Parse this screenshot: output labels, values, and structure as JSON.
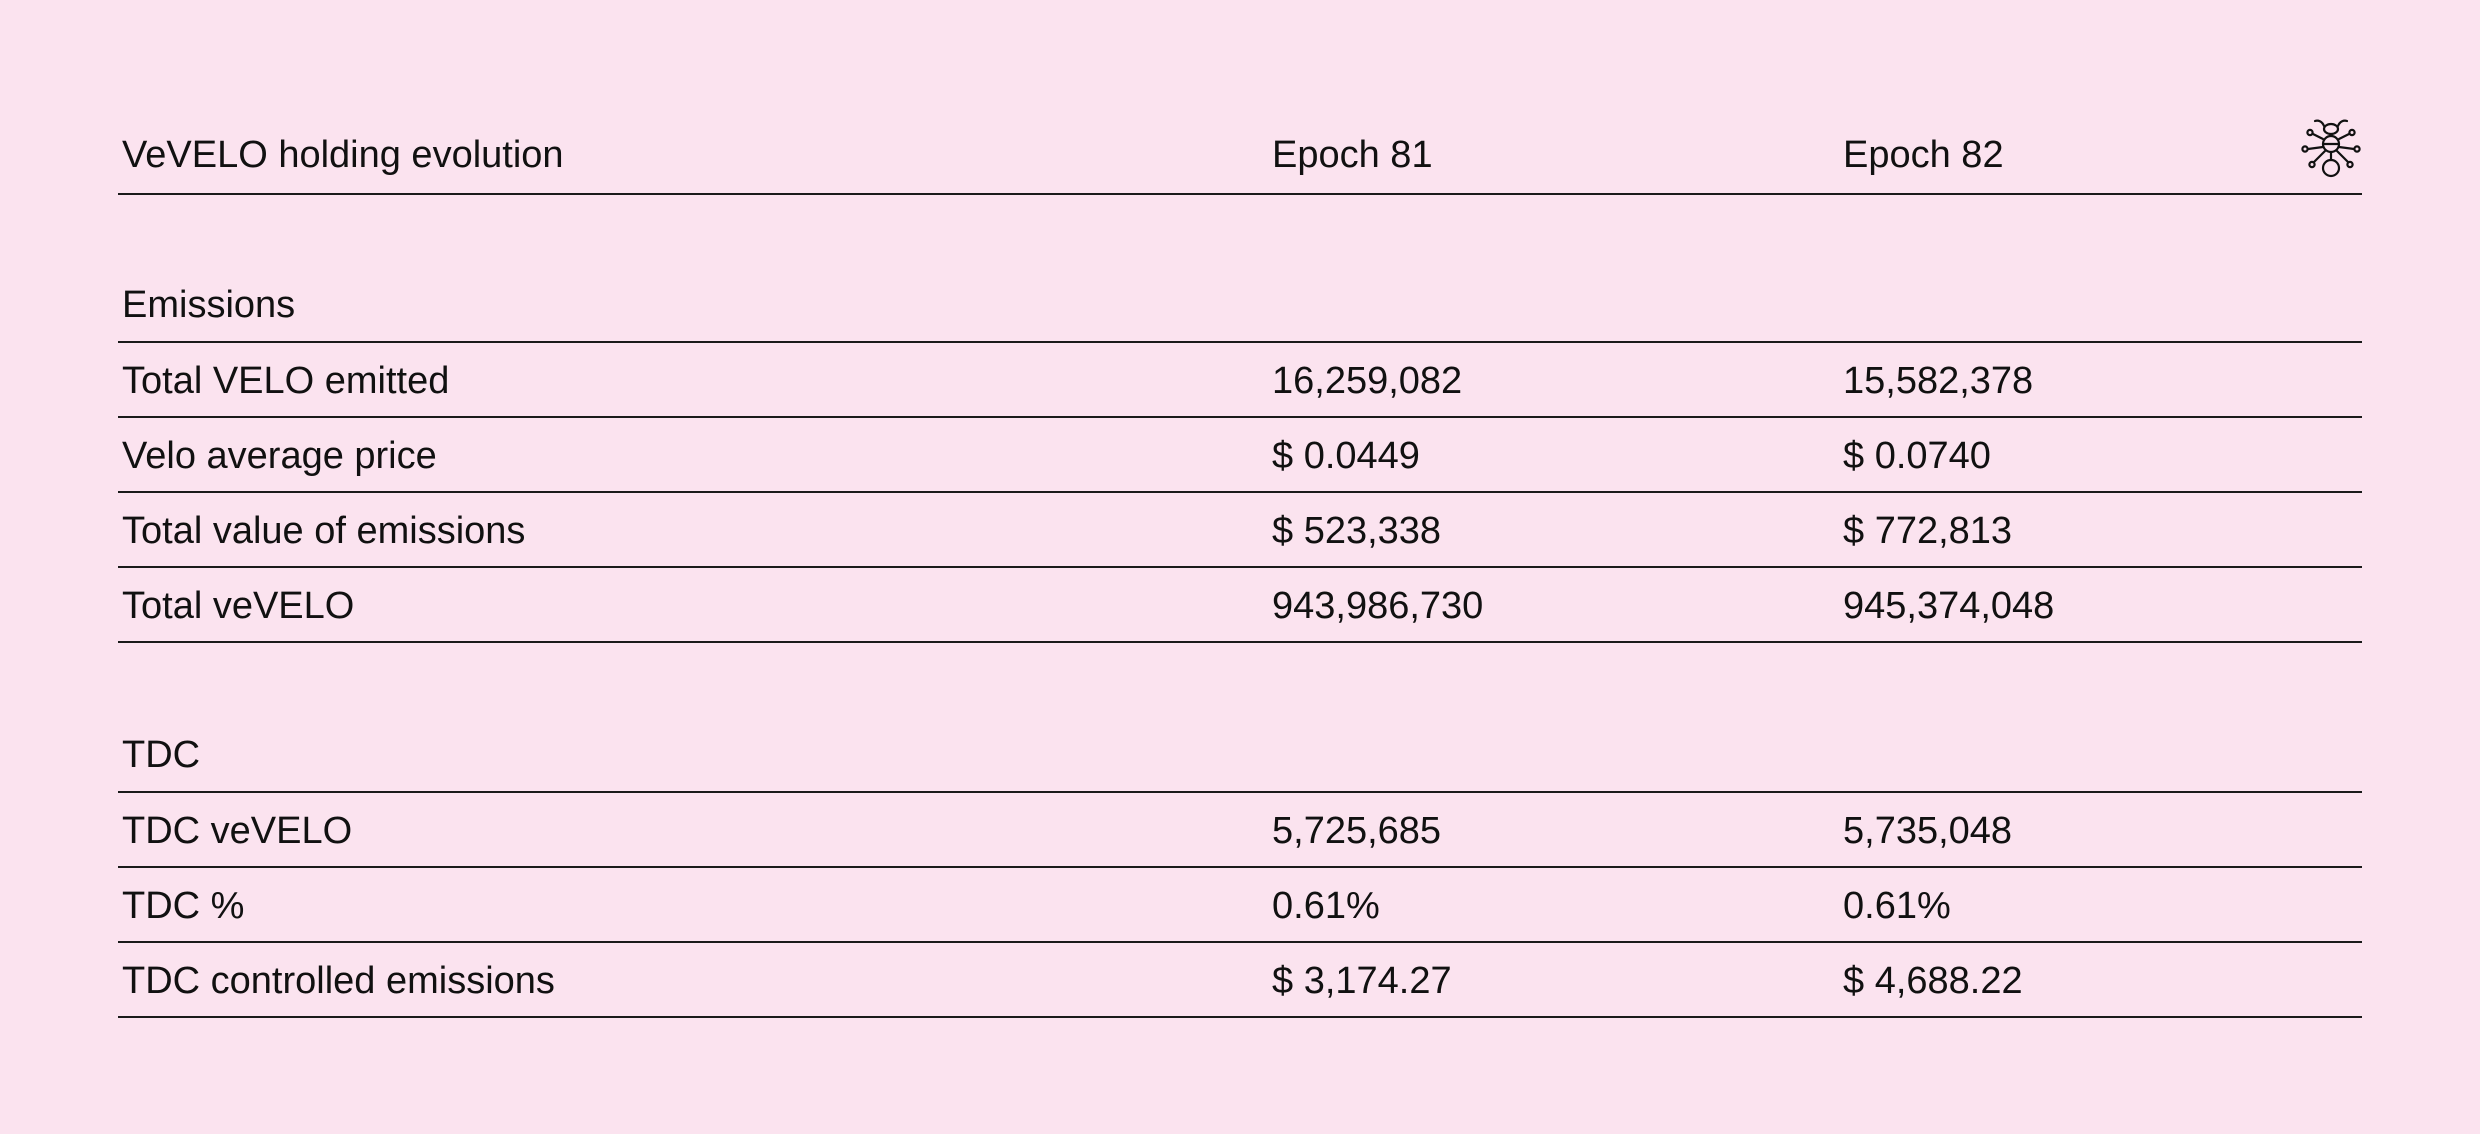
{
  "header": {
    "title": "VeVELO holding evolution",
    "col1": "Epoch 81",
    "col2": "Epoch 82",
    "logo_icon": "ant-icon"
  },
  "sections": [
    {
      "title": "Emissions",
      "rows": [
        {
          "label": "Total VELO emitted",
          "epoch81": "16,259,082",
          "epoch82": "15,582,378"
        },
        {
          "label": "Velo average price",
          "epoch81": "$ 0.0449",
          "epoch82": "$ 0.0740"
        },
        {
          "label": "Total value of emissions",
          "epoch81": "$ 523,338",
          "epoch82": "$ 772,813"
        },
        {
          "label": "Total veVELO",
          "epoch81": "943,986,730",
          "epoch82": "945,374,048"
        }
      ]
    },
    {
      "title": "TDC",
      "rows": [
        {
          "label": "TDC veVELO",
          "epoch81": "5,725,685",
          "epoch82": "5,735,048"
        },
        {
          "label": "TDC %",
          "epoch81": "0.61%",
          "epoch82": "0.61%"
        },
        {
          "label": "TDC controlled emissions",
          "epoch81": "$ 3,174.27",
          "epoch82": "$ 4,688.22"
        }
      ]
    }
  ],
  "colors": {
    "background": "#fbe3ef",
    "text": "#111111",
    "rule": "#1a1a1a"
  }
}
